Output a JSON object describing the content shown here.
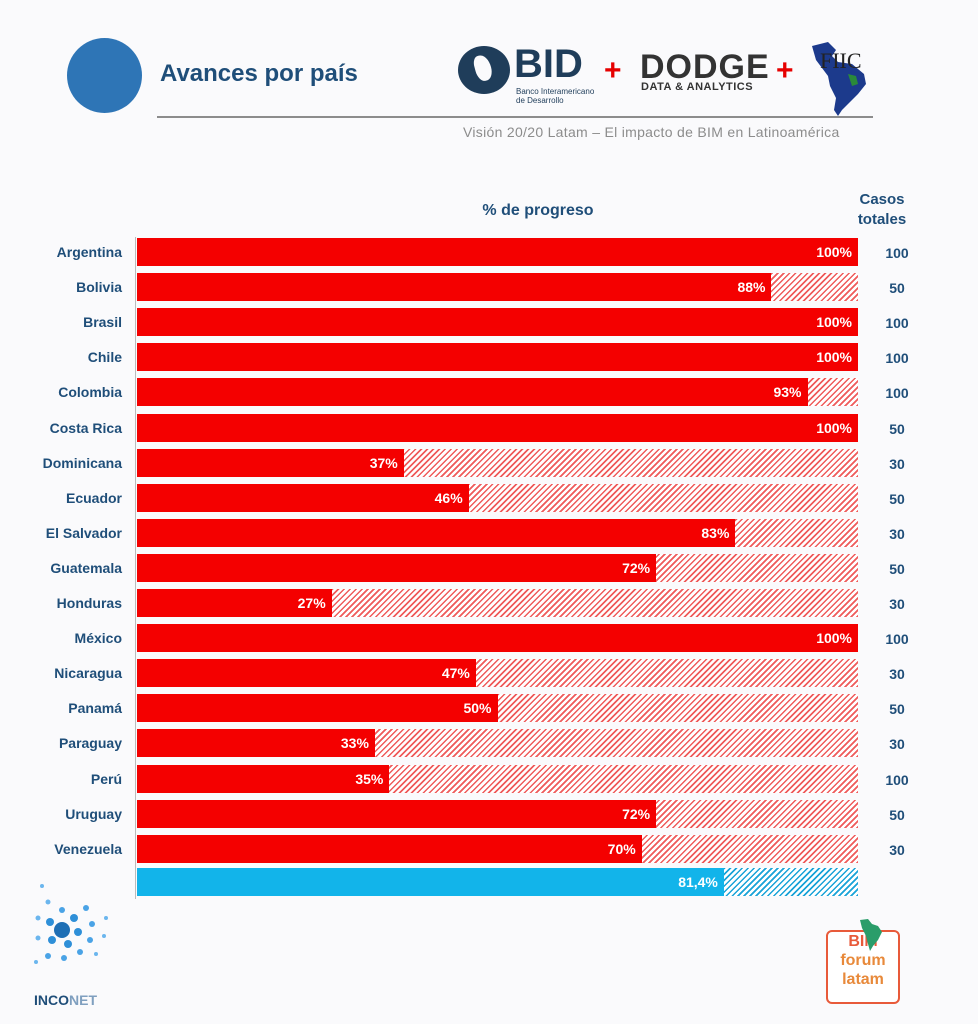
{
  "header": {
    "title": "Avances por país",
    "subtitle": "Visión 20/20 Latam – El impacto de BIM en Latinoamérica",
    "logos": {
      "bid": {
        "name": "BID",
        "subtitle": "Banco Interamericano de Desarrollo"
      },
      "dodge": {
        "name": "DODGE",
        "subtitle": "DATA & ANALYTICS"
      },
      "fiic": {
        "name": "FIIC"
      },
      "plus": "+"
    }
  },
  "footer": {
    "inconet": {
      "part1": "INCO",
      "part2": "NET"
    },
    "bimforum": {
      "line1": "BIM",
      "line2": "forum",
      "line3": "latam"
    }
  },
  "chart_data": {
    "type": "bar",
    "orientation": "horizontal",
    "title": "% de progreso",
    "cases_header": "Casos totales",
    "xlim": [
      0,
      100
    ],
    "categories": [
      "Argentina",
      "Bolivia",
      "Brasil",
      "Chile",
      "Colombia",
      "Costa Rica",
      "Dominicana",
      "Ecuador",
      "El Salvador",
      "Guatemala",
      "Honduras",
      "México",
      "Nicaragua",
      "Panamá",
      "Paraguay",
      "Perú",
      "Uruguay",
      "Venezuela"
    ],
    "values": [
      100,
      88,
      100,
      100,
      93,
      100,
      37,
      46,
      83,
      72,
      27,
      100,
      47,
      50,
      33,
      35,
      72,
      70
    ],
    "labels": [
      "100%",
      "88%",
      "100%",
      "100%",
      "93%",
      "100%",
      "37%",
      "46%",
      "83%",
      "72%",
      "27%",
      "100%",
      "47%",
      "50%",
      "33%",
      "35%",
      "72%",
      "70%"
    ],
    "cases": [
      100,
      50,
      100,
      100,
      100,
      50,
      30,
      50,
      30,
      50,
      30,
      100,
      30,
      50,
      30,
      100,
      50,
      30
    ],
    "total": {
      "value": 81.4,
      "label": "81,4%"
    },
    "colors": {
      "progress": "#f40000",
      "remaining": "#ef5b5b",
      "total": "#12b4ea",
      "total_remaining": "#19a3d8"
    },
    "grid": false,
    "legend": "none"
  }
}
